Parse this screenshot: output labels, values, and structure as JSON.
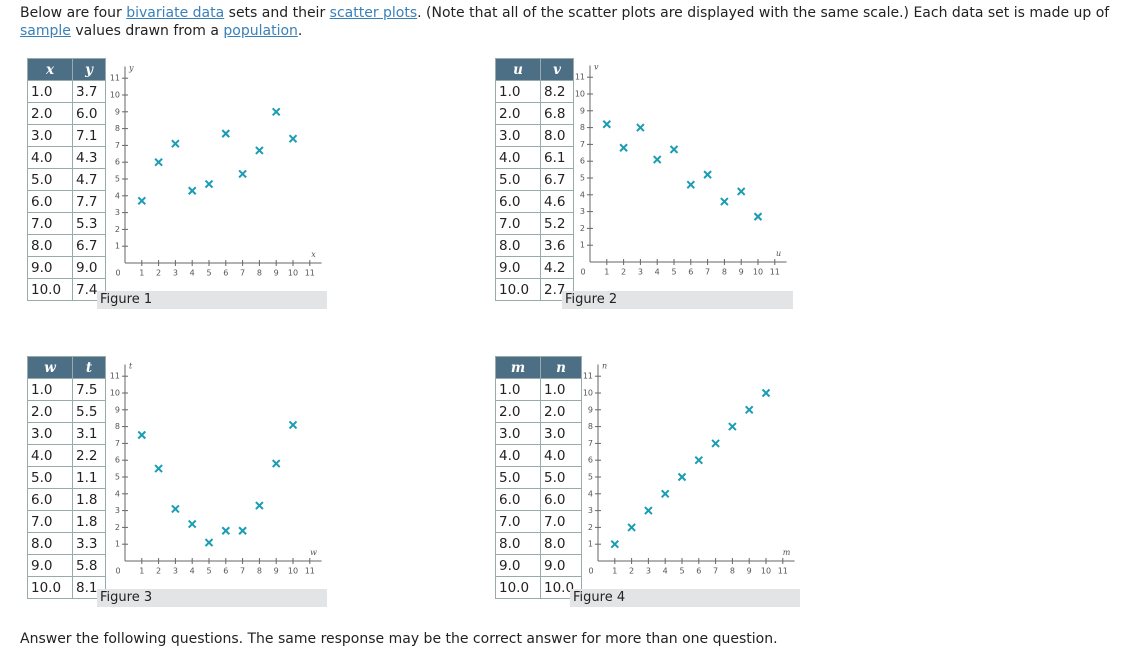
{
  "intro": {
    "parts": [
      "Below are four ",
      "bivariate data",
      " sets and their ",
      "scatter plots",
      ". (Note that all of the scatter plots are displayed with the same scale.) Each data set is made up of ",
      "sample",
      " values drawn from a ",
      "population",
      "."
    ]
  },
  "axes": {
    "lim": [
      0,
      11.7
    ],
    "ticks": [
      1,
      2,
      3,
      4,
      5,
      6,
      7,
      8,
      9,
      10,
      11
    ],
    "origin": "0"
  },
  "figures": [
    {
      "caption": "Figure 1",
      "headers": [
        "x",
        "y"
      ],
      "rows": [
        [
          "1.0",
          "3.7"
        ],
        [
          "2.0",
          "6.0"
        ],
        [
          "3.0",
          "7.1"
        ],
        [
          "4.0",
          "4.3"
        ],
        [
          "5.0",
          "4.7"
        ],
        [
          "6.0",
          "7.7"
        ],
        [
          "7.0",
          "5.3"
        ],
        [
          "8.0",
          "6.7"
        ],
        [
          "9.0",
          "9.0"
        ],
        [
          "10.0",
          "7.4"
        ]
      ]
    },
    {
      "caption": "Figure 2",
      "headers": [
        "u",
        "v"
      ],
      "rows": [
        [
          "1.0",
          "8.2"
        ],
        [
          "2.0",
          "6.8"
        ],
        [
          "3.0",
          "8.0"
        ],
        [
          "4.0",
          "6.1"
        ],
        [
          "5.0",
          "6.7"
        ],
        [
          "6.0",
          "4.6"
        ],
        [
          "7.0",
          "5.2"
        ],
        [
          "8.0",
          "3.6"
        ],
        [
          "9.0",
          "4.2"
        ],
        [
          "10.0",
          "2.7"
        ]
      ]
    },
    {
      "caption": "Figure 3",
      "headers": [
        "w",
        "t"
      ],
      "rows": [
        [
          "1.0",
          "7.5"
        ],
        [
          "2.0",
          "5.5"
        ],
        [
          "3.0",
          "3.1"
        ],
        [
          "4.0",
          "2.2"
        ],
        [
          "5.0",
          "1.1"
        ],
        [
          "6.0",
          "1.8"
        ],
        [
          "7.0",
          "1.8"
        ],
        [
          "8.0",
          "3.3"
        ],
        [
          "9.0",
          "5.8"
        ],
        [
          "10.0",
          "8.1"
        ]
      ]
    },
    {
      "caption": "Figure 4",
      "headers": [
        "m",
        "n"
      ],
      "rows": [
        [
          "1.0",
          "1.0"
        ],
        [
          "2.0",
          "2.0"
        ],
        [
          "3.0",
          "3.0"
        ],
        [
          "4.0",
          "4.0"
        ],
        [
          "5.0",
          "5.0"
        ],
        [
          "6.0",
          "6.0"
        ],
        [
          "7.0",
          "7.0"
        ],
        [
          "8.0",
          "8.0"
        ],
        [
          "9.0",
          "9.0"
        ],
        [
          "10.0",
          "10.0"
        ]
      ]
    }
  ],
  "footer": "Answer the following questions. The same response may be the correct answer for more than one question."
}
